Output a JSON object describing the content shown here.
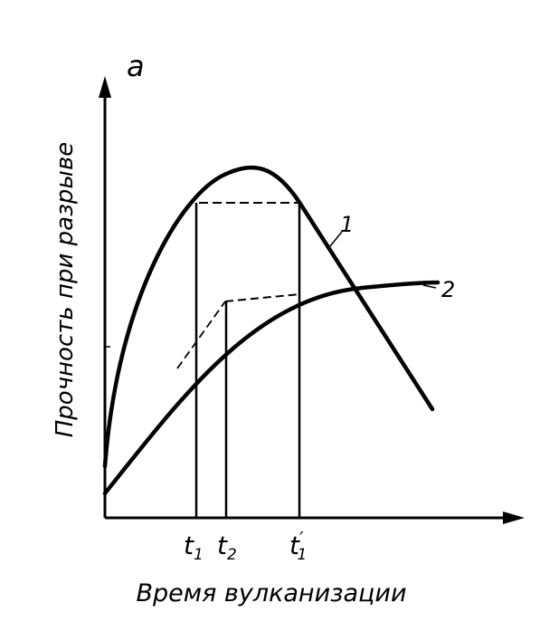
{
  "chart_data": {
    "type": "line",
    "panel_label": "а",
    "xlabel": "Время вулканизации",
    "ylabel": "Прочность при разрыве",
    "x_ticks": [
      {
        "main": "t",
        "sub": "1",
        "prime": ""
      },
      {
        "main": "t",
        "sub": "2",
        "prime": ""
      },
      {
        "main": "t",
        "sub": "1",
        "prime": "′"
      }
    ],
    "series": [
      {
        "name": "1"
      },
      {
        "name": "2"
      }
    ],
    "colors": {
      "ink": "#000000",
      "background": "#ffffff"
    }
  }
}
